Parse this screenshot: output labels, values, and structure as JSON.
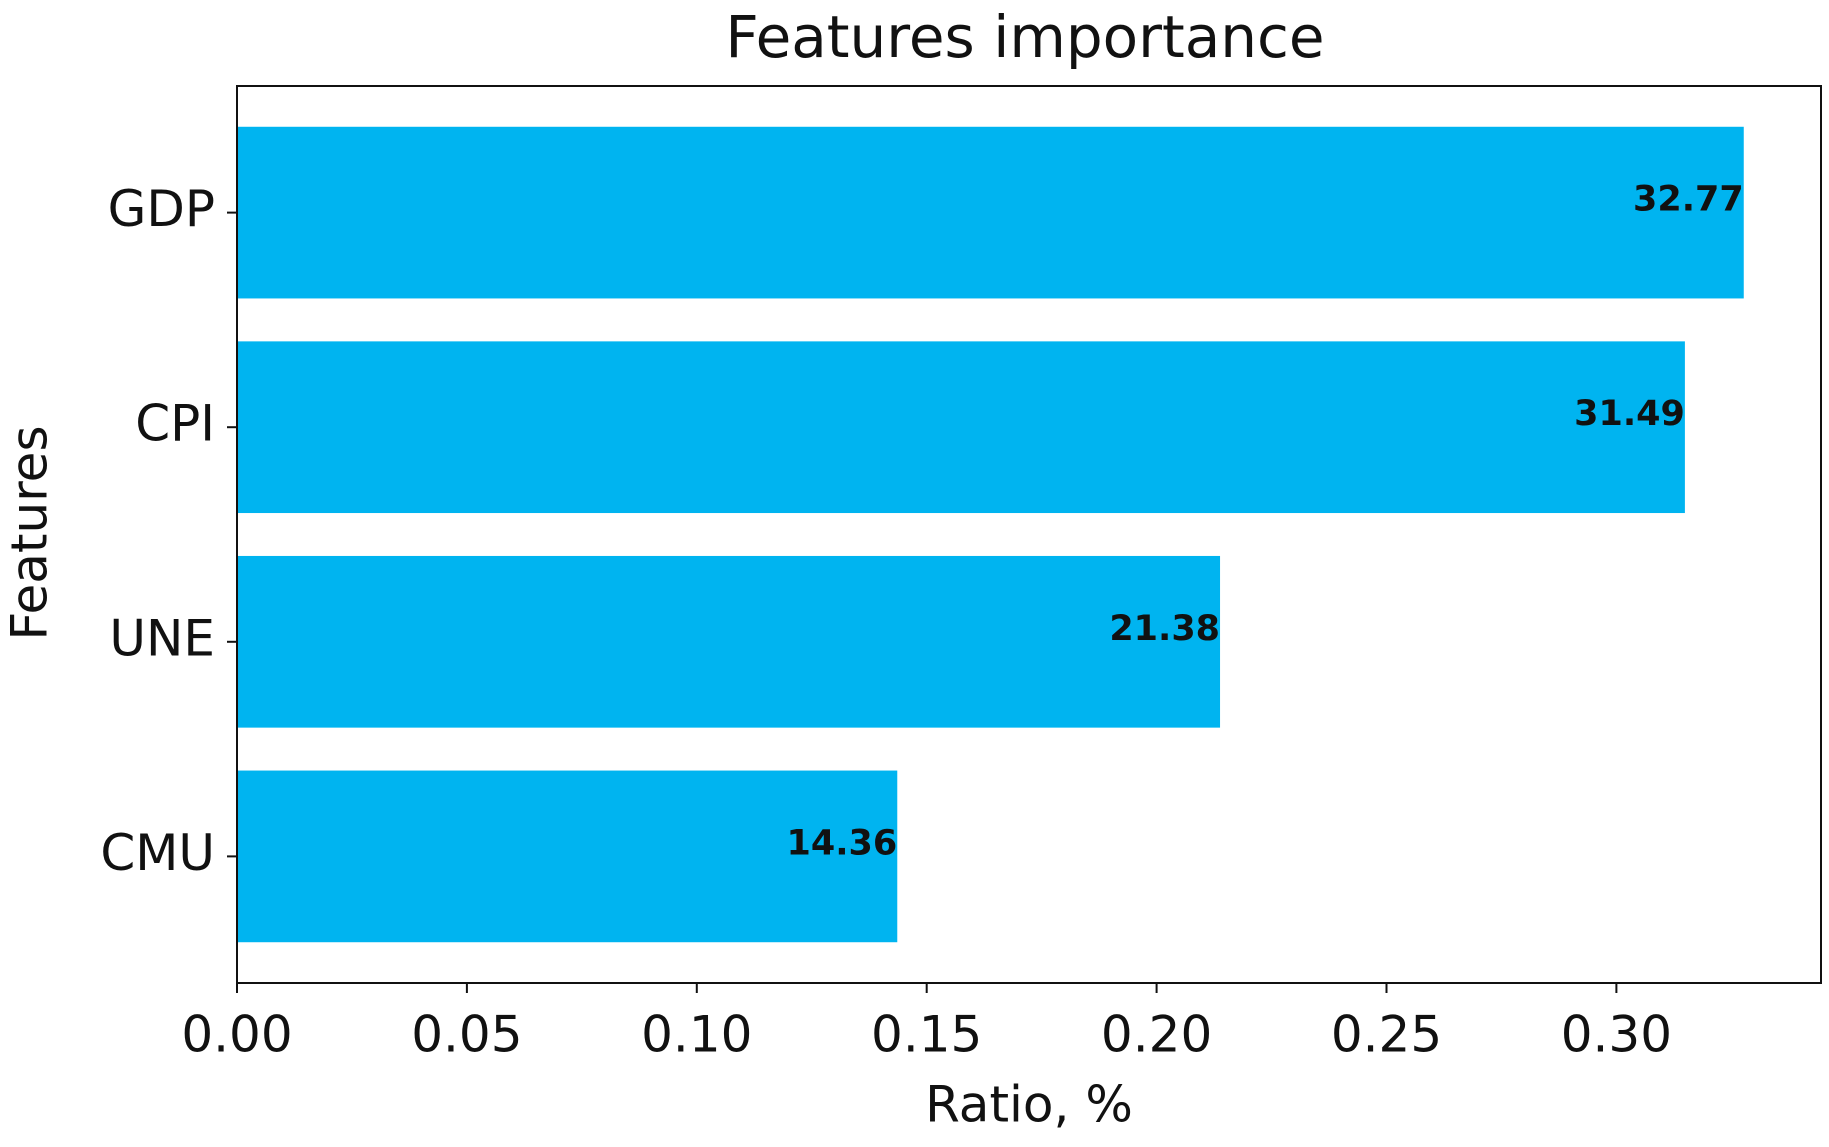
{
  "chart_data": {
    "type": "bar",
    "orientation": "horizontal",
    "title": "Features importance",
    "x_label": "Ratio, %",
    "y_label": "Features",
    "categories": [
      "GDP",
      "CPI",
      "UNE",
      "CMU"
    ],
    "values": [
      0.3277,
      0.3149,
      0.2138,
      0.1436
    ],
    "value_labels": [
      "32.77",
      "31.49",
      "21.38",
      "14.36"
    ],
    "color": "#00b4f0",
    "xlim": [
      0,
      0.3445
    ],
    "xticks": [
      {
        "value": 0,
        "label": "0.00"
      },
      {
        "value": 0.05,
        "label": "0.05"
      },
      {
        "value": 0.1,
        "label": "0.10"
      },
      {
        "value": 0.15,
        "label": "0.15"
      },
      {
        "value": 0.2,
        "label": "0.20"
      },
      {
        "value": 0.25,
        "label": "0.25"
      },
      {
        "value": 0.3,
        "label": "0.30"
      }
    ],
    "grid": false
  }
}
